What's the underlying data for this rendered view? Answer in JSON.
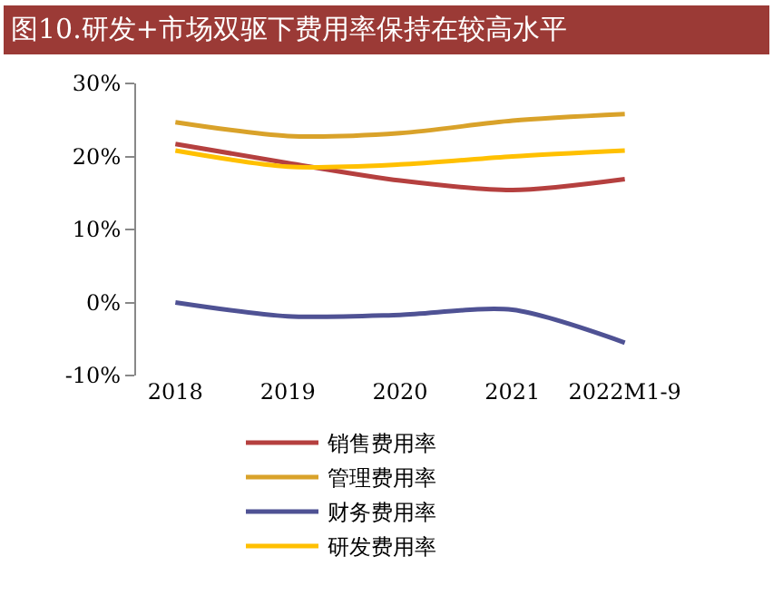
{
  "chart_data": {
    "type": "line",
    "title": "图10.研发+市场双驱下费用率保持在较高水平",
    "categories": [
      "2018",
      "2019",
      "2020",
      "2021",
      "2022M1-9"
    ],
    "series": [
      {
        "name": "销售费用率",
        "color": "#b5403f",
        "values": [
          21.7,
          19.1,
          16.7,
          15.4,
          16.9
        ]
      },
      {
        "name": "管理费用率",
        "color": "#d9a22a",
        "values": [
          24.7,
          22.8,
          23.2,
          24.9,
          25.8
        ]
      },
      {
        "name": "财务费用率",
        "color": "#4f5294",
        "values": [
          0,
          -1.9,
          -1.7,
          -1.0,
          -5.5
        ]
      },
      {
        "name": "研发费用率",
        "color": "#ffc000",
        "values": [
          20.8,
          18.6,
          18.9,
          20.0,
          20.8
        ]
      }
    ],
    "ylim": [
      -10,
      30
    ],
    "yticks": [
      {
        "value": -10,
        "label": "-10%"
      },
      {
        "value": 0,
        "label": "0%"
      },
      {
        "value": 10,
        "label": "10%"
      },
      {
        "value": 20,
        "label": "20%"
      },
      {
        "value": 30,
        "label": "30%"
      }
    ],
    "grid": false,
    "legend": "bottom",
    "marker": "none",
    "line_style": "solid"
  }
}
